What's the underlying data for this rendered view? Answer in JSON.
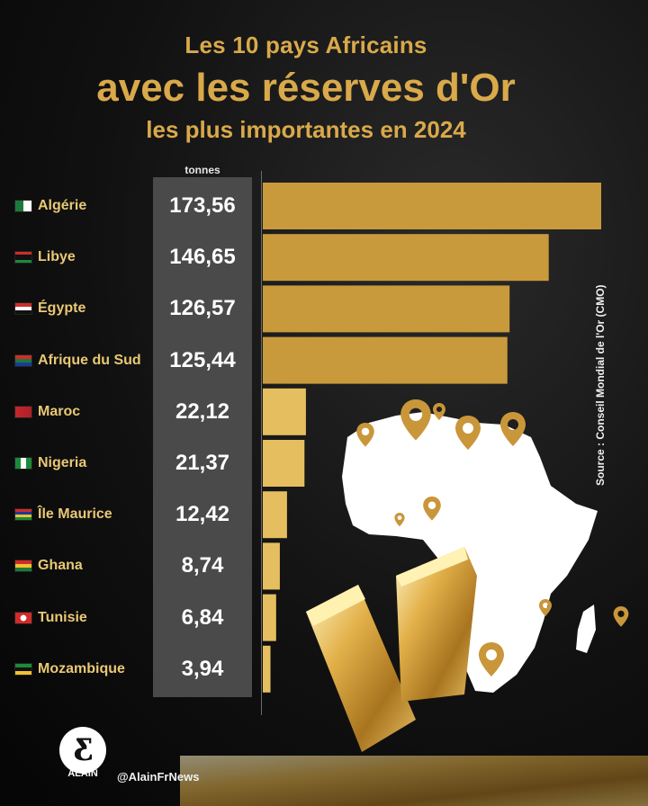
{
  "title": {
    "line1": "Les 10 pays Africains",
    "line2": "avec les réserves d'Or",
    "line3": "les plus importantes en 2024"
  },
  "unit_label": "tonnes",
  "source": "Source : Conseil Mondial de l'Or (CMO)",
  "brand": {
    "name": "ALAIN",
    "handle": "@AlainFrNews"
  },
  "colors": {
    "gold": "#d9a94a",
    "bar_large": "#c99a3c",
    "bar_small": "#e5be5f",
    "panel": "#4a4a4a"
  },
  "chart_data": {
    "type": "bar",
    "orientation": "horizontal",
    "categories": [
      "Algérie",
      "Libye",
      "Égypte",
      "Afrique du Sud",
      "Maroc",
      "Nigeria",
      "Île Maurice",
      "Ghana",
      "Tunisie",
      "Mozambique"
    ],
    "value_labels": [
      "173,56",
      "146,65",
      "126,57",
      "125,44",
      "22,12",
      "21,37",
      "12,42",
      "8,74",
      "6,84",
      "3,94"
    ],
    "values": [
      173.56,
      146.65,
      126.57,
      125.44,
      22.12,
      21.37,
      12.42,
      8.74,
      6.84,
      3.94
    ],
    "flags": [
      "algeria-flag-icon",
      "libya-flag-icon",
      "egypt-flag-icon",
      "south-africa-flag-icon",
      "morocco-flag-icon",
      "nigeria-flag-icon",
      "mauritius-flag-icon",
      "ghana-flag-icon",
      "tunisia-flag-icon",
      "mozambique-flag-icon"
    ],
    "xlim": [
      0,
      173.56
    ]
  }
}
